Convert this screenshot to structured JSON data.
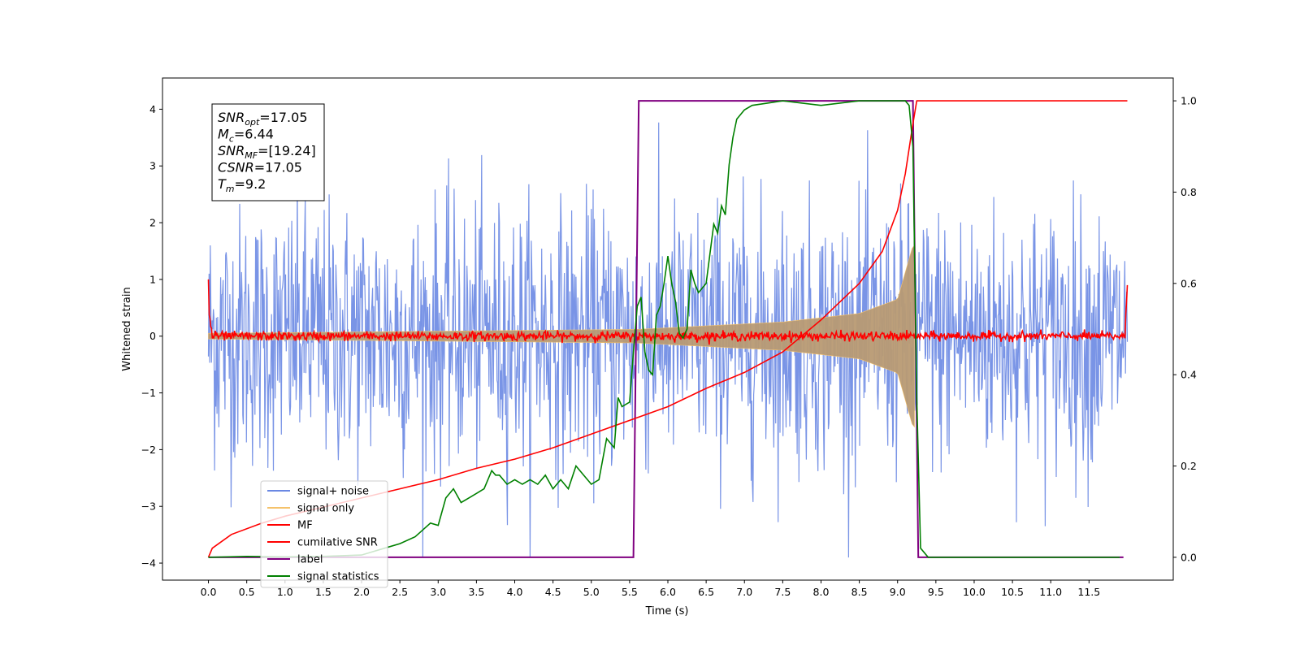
{
  "chart_data": {
    "type": "line",
    "xlabel": "Time (s)",
    "ylabel": "Whitened strain",
    "xlim": [
      -0.6,
      12.6
    ],
    "ylim": [
      -4.3,
      4.55
    ],
    "ylim_right": [
      -0.05,
      1.05
    ],
    "x_ticks": [
      "0.0",
      "0.5",
      "1.0",
      "1.5",
      "2.0",
      "2.5",
      "3.0",
      "3.5",
      "4.0",
      "4.5",
      "5.0",
      "5.5",
      "6.0",
      "6.5",
      "7.0",
      "7.5",
      "8.0",
      "8.5",
      "9.0",
      "9.5",
      "10.0",
      "10.5",
      "11.0",
      "11.5"
    ],
    "y_ticks": [
      "4",
      "3",
      "2",
      "1",
      "0",
      "−1",
      "−2",
      "−3",
      "−4"
    ],
    "y_ticks_right": [
      "1.0",
      "0.8",
      "0.6",
      "0.4",
      "0.2",
      "0.0"
    ],
    "legend_position": "lower-left",
    "annotation": [
      {
        "base": "SNR",
        "sub": "opt",
        "value": "=17.05"
      },
      {
        "base": "M",
        "sub": "c",
        "value": "=6.44"
      },
      {
        "base": "SNR",
        "sub": "MF",
        "value": "=[19.24]"
      },
      {
        "base": "CSNR",
        "sub": "",
        "value": "=17.05"
      },
      {
        "base": "T",
        "sub": "m",
        "value": "=9.2"
      }
    ],
    "series": [
      {
        "name": "signal+ noise",
        "color": "#6a88e3",
        "axis": "left",
        "description_values": {
          "x_range": [
            0,
            12
          ],
          "approx_amplitude": 2.5
        }
      },
      {
        "name": "signal only",
        "color": "#f5c26b",
        "axis": "left",
        "description_values": {
          "x_range": [
            0,
            9.25
          ],
          "envelope_at_x": [
            [
              0,
              0.05
            ],
            [
              5.6,
              0.12
            ],
            [
              7.5,
              0.25
            ],
            [
              8.5,
              0.4
            ],
            [
              9.0,
              0.65
            ],
            [
              9.2,
              1.6
            ]
          ]
        }
      },
      {
        "name": "MF",
        "color": "#ff0000",
        "axis": "left",
        "description_values": {
          "x_range": [
            0,
            12
          ],
          "baseline": 0.0,
          "noise_amplitude": 0.08
        }
      },
      {
        "name": "cumilative SNR",
        "color": "#ff0000",
        "axis": "right",
        "x": [
          0,
          0.05,
          0.3,
          0.7,
          1.0,
          1.5,
          2.0,
          2.5,
          3.0,
          3.5,
          4.0,
          4.5,
          5.0,
          5.5,
          6.0,
          6.5,
          7.0,
          7.5,
          8.0,
          8.5,
          8.8,
          9.0,
          9.1,
          9.2,
          9.25,
          12.0
        ],
        "y": [
          0.0,
          0.02,
          0.05,
          0.075,
          0.09,
          0.11,
          0.13,
          0.15,
          0.17,
          0.195,
          0.215,
          0.24,
          0.27,
          0.3,
          0.33,
          0.37,
          0.405,
          0.45,
          0.52,
          0.6,
          0.67,
          0.76,
          0.84,
          0.95,
          1.0,
          1.0
        ]
      },
      {
        "name": "label",
        "color": "#800080",
        "axis": "right",
        "x": [
          0,
          5.55,
          5.62,
          9.2,
          9.27,
          11.95
        ],
        "y": [
          0.0,
          0.0,
          1.0,
          1.0,
          0.0,
          0.0
        ]
      },
      {
        "name": "signal statistics",
        "color": "#008000",
        "axis": "right",
        "x": [
          0,
          0.5,
          1.0,
          1.5,
          2.0,
          2.3,
          2.5,
          2.7,
          2.8,
          2.9,
          3.0,
          3.1,
          3.2,
          3.3,
          3.4,
          3.5,
          3.6,
          3.7,
          3.75,
          3.8,
          3.9,
          4.0,
          4.1,
          4.2,
          4.3,
          4.4,
          4.5,
          4.6,
          4.7,
          4.8,
          4.9,
          5.0,
          5.1,
          5.2,
          5.3,
          5.35,
          5.4,
          5.5,
          5.55,
          5.6,
          5.65,
          5.7,
          5.75,
          5.8,
          5.85,
          5.9,
          5.95,
          6.0,
          6.05,
          6.1,
          6.15,
          6.2,
          6.25,
          6.3,
          6.35,
          6.4,
          6.5,
          6.6,
          6.65,
          6.7,
          6.75,
          6.8,
          6.85,
          6.9,
          7.0,
          7.1,
          7.3,
          7.5,
          8.0,
          8.5,
          9.0,
          9.1,
          9.15,
          9.2,
          9.25,
          9.3,
          9.4,
          9.5,
          10.0,
          11.0,
          11.9
        ],
        "y": [
          0.0,
          0.002,
          0.001,
          0.002,
          0.005,
          0.02,
          0.03,
          0.045,
          0.06,
          0.075,
          0.07,
          0.13,
          0.15,
          0.12,
          0.13,
          0.14,
          0.15,
          0.19,
          0.18,
          0.18,
          0.16,
          0.17,
          0.16,
          0.17,
          0.16,
          0.18,
          0.15,
          0.17,
          0.15,
          0.2,
          0.18,
          0.16,
          0.17,
          0.26,
          0.24,
          0.35,
          0.33,
          0.34,
          0.45,
          0.55,
          0.57,
          0.45,
          0.41,
          0.4,
          0.53,
          0.55,
          0.6,
          0.66,
          0.6,
          0.56,
          0.49,
          0.48,
          0.5,
          0.63,
          0.6,
          0.58,
          0.6,
          0.73,
          0.71,
          0.77,
          0.75,
          0.86,
          0.92,
          0.96,
          0.98,
          0.99,
          0.995,
          1.0,
          0.99,
          1.0,
          1.0,
          1.0,
          0.99,
          0.9,
          0.35,
          0.02,
          0.0,
          0.0,
          0.0,
          0.0,
          0.0
        ]
      }
    ]
  }
}
